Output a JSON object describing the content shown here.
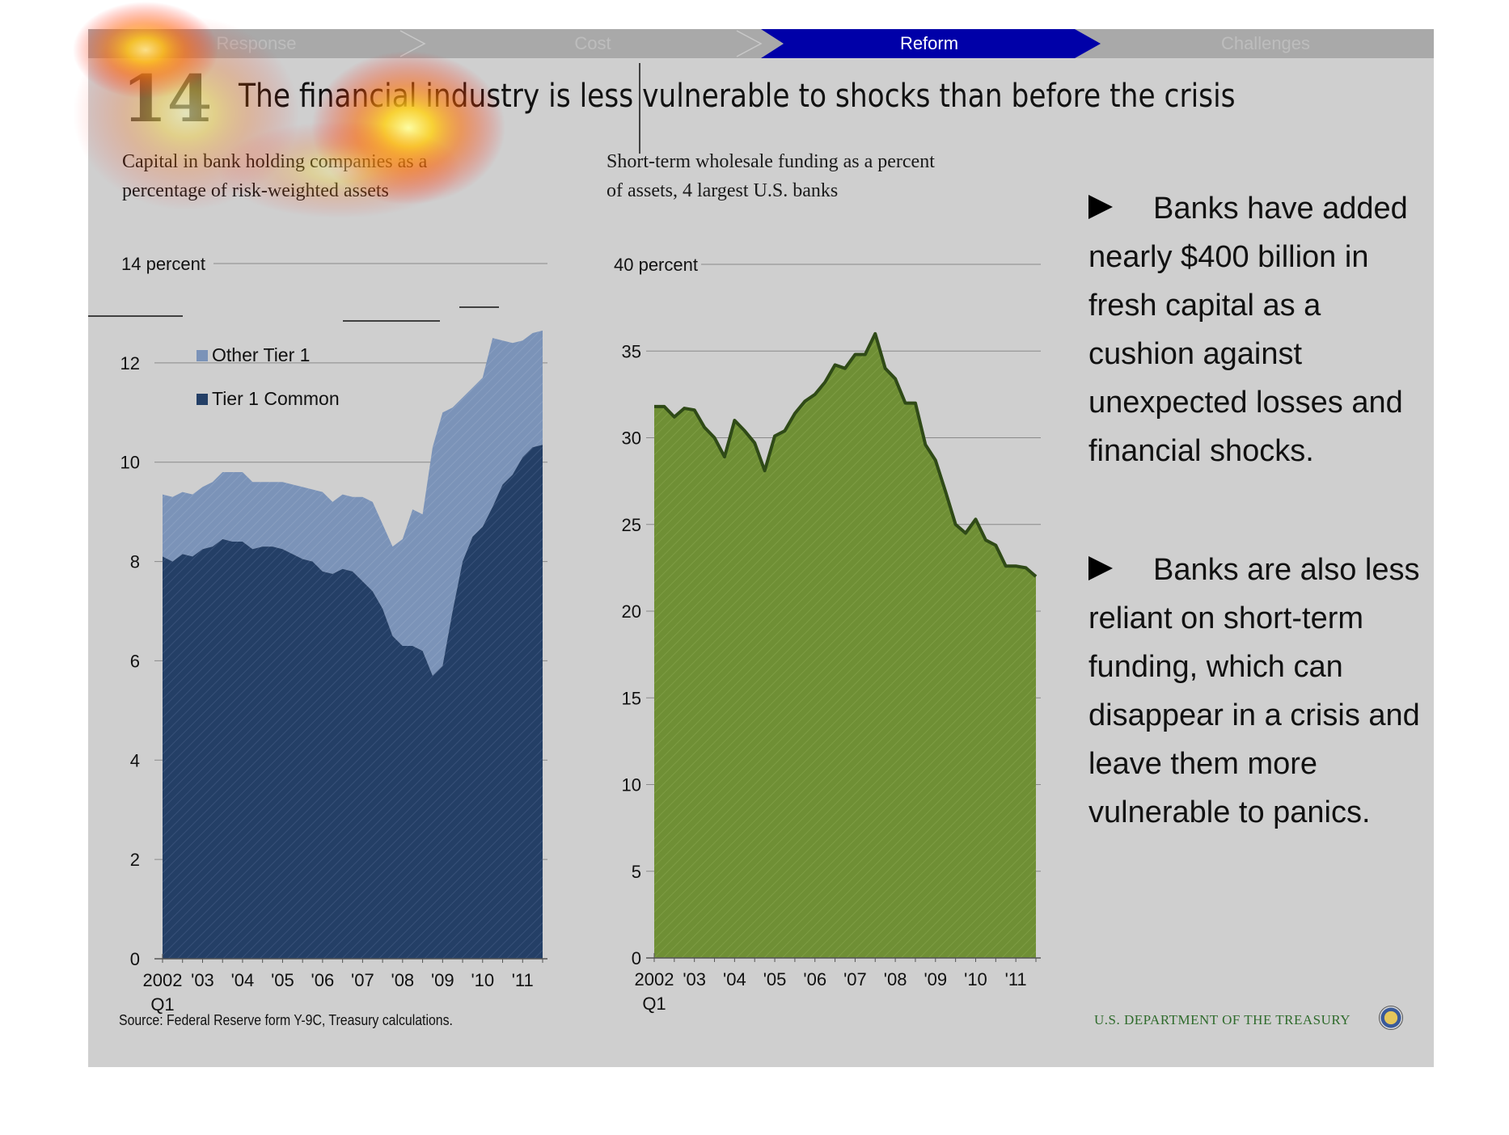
{
  "nav": {
    "items": [
      {
        "label": "Response",
        "active": false
      },
      {
        "label": "Cost",
        "active": false
      },
      {
        "label": "Reform",
        "active": true
      },
      {
        "label": "Challenges",
        "active": false
      }
    ],
    "active_color": "#0000a8",
    "inactive_bar_color": "#a9a9a9"
  },
  "slide": {
    "number": "14",
    "title": "The financial industry is less vulnerable to shocks than before the crisis"
  },
  "left_chart": {
    "subtitle_line1": "Capital in bank holding companies as a",
    "subtitle_line2": "percentage of risk-weighted assets",
    "unit_label": "14 percent",
    "x_extra_label": "Q1"
  },
  "right_chart": {
    "subtitle_line1": "Short-term wholesale funding as a percent",
    "subtitle_line2": "of assets, 4 largest U.S. banks",
    "unit_label": "40 percent",
    "x_extra_label": "Q1"
  },
  "bullets": [
    {
      "text": "Banks have added nearly  $400 billion in fresh capital as a cushion against unexpected losses and financial shocks."
    },
    {
      "text": "Banks are also less reliant on short-term funding, which can disappear in a crisis and leave them more vulnerable to panics."
    }
  ],
  "footer": {
    "source": "Source: Federal Reserve form Y-9C, Treasury calculations.",
    "agency": "U.S. DEPARTMENT OF THE TREASURY",
    "seal_icon": "treasury-seal-icon"
  },
  "colors": {
    "other_tier1": "#7b93b8",
    "tier1_common": "#243f66",
    "wholesale_fill": "#6f8f35",
    "wholesale_line": "#2f4a17",
    "background": "#cfcfcf"
  },
  "chart_data": [
    {
      "type": "area",
      "stacked": true,
      "ylim": [
        0,
        14
      ],
      "yticks": [
        0,
        2,
        4,
        6,
        8,
        10,
        12,
        14
      ],
      "ytick_labels": [
        "0",
        "2",
        "4",
        "6",
        "8",
        "10",
        "12",
        "14 percent"
      ],
      "x_start": 2002.0,
      "x_end": 2011.5,
      "xtick_positions": [
        2002,
        2003,
        2004,
        2005,
        2006,
        2007,
        2008,
        2009,
        2010,
        2011
      ],
      "xtick_labels": [
        "2002",
        "'03",
        "'04",
        "'05",
        "'06",
        "'07",
        "'08",
        "'09",
        "'10",
        "'11"
      ],
      "legend_position": "upper-left",
      "series": [
        {
          "name": "Tier 1 Common",
          "color": "#243f66",
          "x": [
            2002.0,
            2002.25,
            2002.5,
            2002.75,
            2003.0,
            2003.25,
            2003.5,
            2003.75,
            2004.0,
            2004.25,
            2004.5,
            2004.75,
            2005.0,
            2005.25,
            2005.5,
            2005.75,
            2006.0,
            2006.25,
            2006.5,
            2006.75,
            2007.0,
            2007.25,
            2007.5,
            2007.75,
            2008.0,
            2008.25,
            2008.5,
            2008.75,
            2009.0,
            2009.25,
            2009.5,
            2009.75,
            2010.0,
            2010.25,
            2010.5,
            2010.75,
            2011.0,
            2011.25,
            2011.5
          ],
          "values": [
            8.1,
            8.0,
            8.15,
            8.1,
            8.25,
            8.3,
            8.45,
            8.4,
            8.4,
            8.25,
            8.3,
            8.3,
            8.25,
            8.15,
            8.05,
            8.0,
            7.8,
            7.75,
            7.85,
            7.8,
            7.6,
            7.4,
            7.05,
            6.5,
            6.3,
            6.3,
            6.2,
            5.7,
            5.9,
            7.0,
            8.0,
            8.5,
            8.7,
            9.1,
            9.55,
            9.75,
            10.1,
            10.3,
            10.35
          ]
        },
        {
          "name": "Other Tier 1",
          "color": "#7b93b8",
          "x": [
            2002.0,
            2002.25,
            2002.5,
            2002.75,
            2003.0,
            2003.25,
            2003.5,
            2003.75,
            2004.0,
            2004.25,
            2004.5,
            2004.75,
            2005.0,
            2005.25,
            2005.5,
            2005.75,
            2006.0,
            2006.25,
            2006.5,
            2006.75,
            2007.0,
            2007.25,
            2007.5,
            2007.75,
            2008.0,
            2008.25,
            2008.5,
            2008.75,
            2009.0,
            2009.25,
            2009.5,
            2009.75,
            2010.0,
            2010.25,
            2010.5,
            2010.75,
            2011.0,
            2011.25,
            2011.5
          ],
          "values": [
            1.25,
            1.3,
            1.25,
            1.25,
            1.25,
            1.3,
            1.35,
            1.4,
            1.4,
            1.35,
            1.3,
            1.3,
            1.35,
            1.4,
            1.45,
            1.45,
            1.6,
            1.45,
            1.5,
            1.5,
            1.7,
            1.8,
            1.7,
            1.8,
            2.15,
            2.75,
            2.75,
            4.6,
            5.1,
            4.1,
            3.3,
            3.0,
            3.0,
            3.4,
            2.9,
            2.65,
            2.35,
            2.3,
            2.3
          ]
        }
      ]
    },
    {
      "type": "area",
      "ylim": [
        0,
        40
      ],
      "yticks": [
        0,
        5,
        10,
        15,
        20,
        25,
        30,
        35,
        40
      ],
      "ytick_labels": [
        "0",
        "5",
        "10",
        "15",
        "20",
        "25",
        "30",
        "35",
        "40 percent"
      ],
      "x_start": 2002.0,
      "x_end": 2011.5,
      "xtick_positions": [
        2002,
        2003,
        2004,
        2005,
        2006,
        2007,
        2008,
        2009,
        2010,
        2011
      ],
      "xtick_labels": [
        "2002",
        "'03",
        "'04",
        "'05",
        "'06",
        "'07",
        "'08",
        "'09",
        "'10",
        "'11"
      ],
      "series": [
        {
          "name": "",
          "color": "#6f8f35",
          "x": [
            2002.0,
            2002.25,
            2002.5,
            2002.75,
            2003.0,
            2003.25,
            2003.5,
            2003.75,
            2004.0,
            2004.25,
            2004.5,
            2004.75,
            2005.0,
            2005.25,
            2005.5,
            2005.75,
            2006.0,
            2006.25,
            2006.5,
            2006.75,
            2007.0,
            2007.25,
            2007.5,
            2007.75,
            2008.0,
            2008.25,
            2008.5,
            2008.75,
            2009.0,
            2009.25,
            2009.5,
            2009.75,
            2010.0,
            2010.25,
            2010.5,
            2010.75,
            2011.0,
            2011.25,
            2011.5
          ],
          "values": [
            31.8,
            31.8,
            31.2,
            31.7,
            31.6,
            30.6,
            30.0,
            28.9,
            31.0,
            30.4,
            29.7,
            28.1,
            30.1,
            30.4,
            31.4,
            32.1,
            32.5,
            33.2,
            34.2,
            34.0,
            34.8,
            34.8,
            36.0,
            34.0,
            33.4,
            32.0,
            32.0,
            29.6,
            28.7,
            26.9,
            25.0,
            24.5,
            25.3,
            24.1,
            23.8,
            22.6,
            22.6,
            22.5,
            22.0
          ]
        }
      ]
    }
  ]
}
